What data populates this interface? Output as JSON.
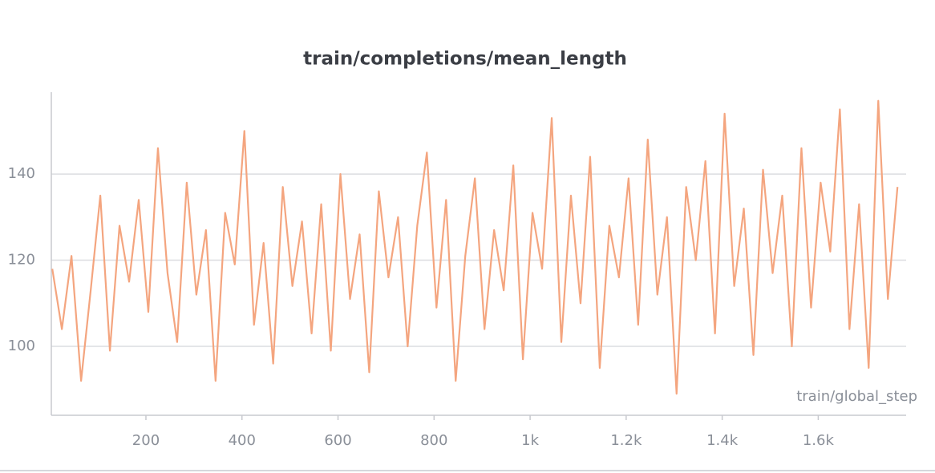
{
  "chart_data": {
    "type": "line",
    "title": "train/completions/mean_length",
    "x_label": "train/global_step",
    "x": [
      5,
      25,
      45,
      65,
      85,
      105,
      125,
      145,
      165,
      185,
      205,
      225,
      245,
      265,
      285,
      305,
      325,
      345,
      365,
      385,
      405,
      425,
      445,
      465,
      485,
      505,
      525,
      545,
      565,
      585,
      605,
      625,
      645,
      665,
      685,
      705,
      725,
      745,
      765,
      785,
      805,
      825,
      845,
      865,
      885,
      905,
      925,
      945,
      965,
      985,
      1005,
      1025,
      1045,
      1065,
      1085,
      1105,
      1125,
      1145,
      1165,
      1185,
      1205,
      1225,
      1245,
      1265,
      1285,
      1305,
      1325,
      1345,
      1365,
      1385,
      1405,
      1425,
      1445,
      1465,
      1485,
      1505,
      1525,
      1545,
      1565,
      1585,
      1605,
      1625,
      1645,
      1665,
      1685,
      1705,
      1725,
      1745,
      1765
    ],
    "series": [
      {
        "color": "#f4a57f",
        "values": [
          118,
          104,
          121,
          92,
          113,
          135,
          99,
          128,
          115,
          134,
          108,
          146,
          117,
          101,
          138,
          112,
          127,
          92,
          131,
          119,
          150,
          105,
          124,
          96,
          137,
          114,
          129,
          103,
          133,
          99,
          140,
          111,
          126,
          94,
          136,
          116,
          130,
          100,
          128,
          145,
          109,
          134,
          92,
          121,
          139,
          104,
          127,
          113,
          142,
          97,
          131,
          118,
          153,
          101,
          135,
          110,
          144,
          95,
          128,
          116,
          139,
          105,
          148,
          112,
          130,
          89,
          137,
          120,
          143,
          103,
          154,
          114,
          132,
          98,
          141,
          117,
          135,
          100,
          146,
          109,
          138,
          122,
          155,
          104,
          133,
          95,
          157,
          111,
          137
        ]
      }
    ],
    "xlim": [
      3,
      1783
    ],
    "ylim": [
      84,
      159
    ],
    "xticks": [
      200,
      400,
      600,
      800,
      {
        "value": 1000,
        "label": "1k"
      },
      {
        "value": 1200,
        "label": "1.2k"
      },
      {
        "value": 1400,
        "label": "1.4k"
      },
      {
        "value": 1600,
        "label": "1.6k"
      }
    ],
    "yticks": [
      100,
      120,
      140
    ],
    "grid": true
  }
}
